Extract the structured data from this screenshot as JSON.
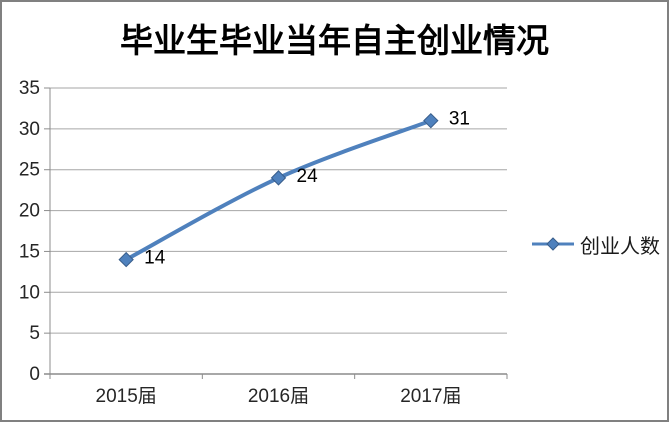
{
  "frame": {
    "background": "#ffffff",
    "border_color": "#808080"
  },
  "chart_data": {
    "type": "line",
    "title": "毕业生毕业当年自主创业情况",
    "categories": [
      "2015届",
      "2016届",
      "2017届"
    ],
    "series": [
      {
        "name": "创业人数",
        "values": [
          14,
          24,
          31
        ],
        "color": "#4F81BD",
        "marker": "diamond",
        "marker_border": "#385D8A",
        "smooth": true,
        "data_labels": [
          14,
          24,
          31
        ]
      }
    ],
    "xlabel": "",
    "ylabel": "",
    "ylim": [
      0,
      35
    ],
    "yticks": [
      0,
      5,
      10,
      15,
      20,
      25,
      30,
      35
    ],
    "grid": true,
    "gridline_color": "#A6A6A6",
    "axis_color": "#8C8C8C",
    "tick_label_color": "#262626",
    "data_label_color": "#000000",
    "legend_position": "right"
  }
}
